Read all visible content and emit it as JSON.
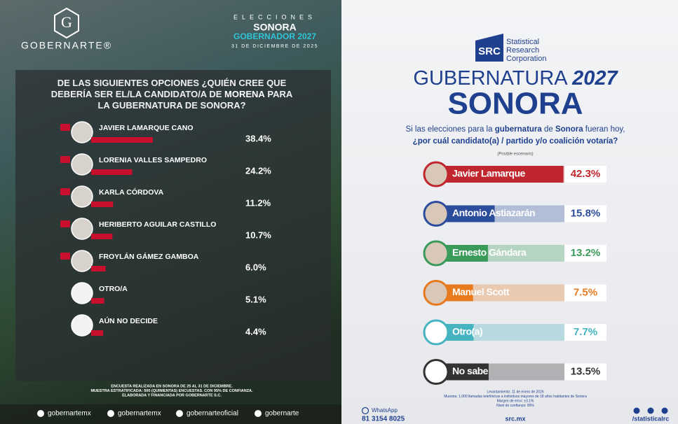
{
  "chart_data": [
    {
      "type": "bar",
      "orientation": "horizontal",
      "brand": "GOBERNARTE®",
      "kicker": "ELECCIONES",
      "subtitle": "SONORA",
      "election": "GOBERNADOR 2027",
      "date": "31 DE DICIEMBRE DE 2025",
      "title": [
        "DE LAS SIGUIENTES OPCIONES ¿QUIÉN CREE QUE",
        "DEBERÍA SER EL/LA CANDIDATO/A DE ",
        "MORENA",
        " PARA",
        "LA GUBERNATURA DE SONORA?"
      ],
      "categories": [
        "JAVIER LAMARQUE CANO",
        "LORENIA VALLES SAMPEDRO",
        "KARLA CÓRDOVA",
        "HERIBERTO AGUILAR CASTILLO",
        "FROYLÁN GÁMEZ GAMBOA",
        "OTRO/A",
        "AÚN NO DECIDE"
      ],
      "values": [
        38.4,
        24.2,
        11.2,
        10.7,
        6.0,
        5.1,
        4.4
      ],
      "value_labels": [
        "38.4%",
        "24.2%",
        "11.2%",
        "10.7%",
        "6.0%",
        "5.1%",
        "4.4%"
      ],
      "color": "#c8102e",
      "footnote": [
        "ENCUESTA REALIZADA EN SONORA DE 25 AL 31 DE DICIEMBRE.",
        "MUESTRA ESTRATIFICADA: 500 (QUINIENTAS) ENCUESTAS. CON 95% DE CONFIANZA.",
        "ELABORADA Y FINANCIADA POR GOBERNARTE S.C."
      ],
      "social": [
        "gobernartemx",
        "gobernartemx",
        "gobernarteoficial",
        "gobernarte"
      ]
    },
    {
      "type": "bar",
      "orientation": "horizontal",
      "logo": "SRC",
      "brand": [
        "Statistical",
        "Research",
        "Corporation"
      ],
      "title": [
        "GUBERNATURA ",
        "2027"
      ],
      "subtitle": "SONORA",
      "question": [
        "Si las elecciones para la ",
        "gubernatura",
        " de ",
        "Sonora",
        " fueran hoy,",
        "¿por cuál candidato(a) / partido y/o coalición votaría?"
      ],
      "note": "(Posible escenario)",
      "categories": [
        "Javier Lamarque",
        "Antonio Astiazarán",
        "Ernesto Gándara",
        "Manuel Scott",
        "Otro(a)",
        "No sabe"
      ],
      "values": [
        42.3,
        15.8,
        13.2,
        7.5,
        7.7,
        13.5
      ],
      "value_labels": [
        "42.3%",
        "15.8%",
        "13.2%",
        "7.5%",
        "7.7%",
        "13.5%"
      ],
      "colors": [
        "#c0262d",
        "#2c4c9c",
        "#3a9a5a",
        "#e87a1e",
        "#45b3c0",
        "#333333"
      ],
      "footnote": [
        "Levantamiento: 11 de enero de 2026",
        "Muestra: 1,000 llamadas telefónicas a individuos mayores de 18 años habitantes de Sonora",
        "Margen de error: ±3.1%",
        "Nivel de confianza: 95%"
      ],
      "contact": [
        "WhatsApp",
        "81 3154 8025"
      ],
      "website": "src.mx",
      "social": "/statisticalrc"
    }
  ]
}
